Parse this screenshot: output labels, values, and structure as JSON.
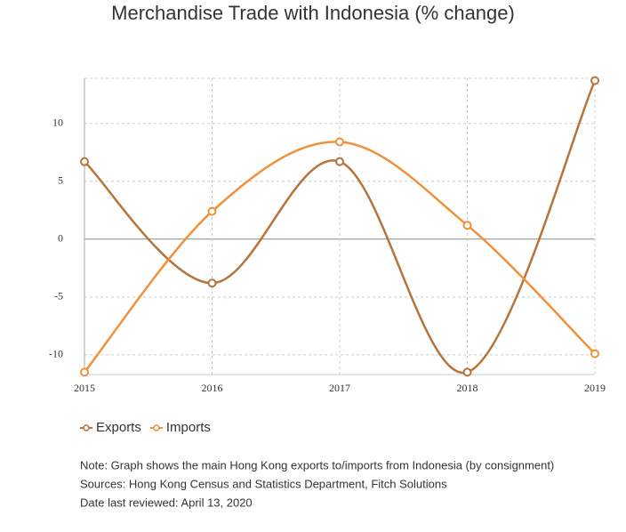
{
  "chart_data": {
    "type": "line",
    "title": "Merchandise Trade with Indonesia (% change)",
    "categories": [
      "2015",
      "2016",
      "2017",
      "2018",
      "2019"
    ],
    "series": [
      {
        "name": "Exports",
        "color": "#b8733a",
        "values": [
          6.7,
          -3.8,
          6.7,
          -11.5,
          13.7
        ]
      },
      {
        "name": "Imports",
        "color": "#f0913a",
        "values": [
          -11.5,
          2.4,
          8.4,
          1.2,
          -9.9
        ]
      }
    ],
    "ylim": [
      -11.7,
      13.9
    ],
    "yticks": [
      -10,
      -5,
      0,
      5,
      10
    ],
    "grid": true,
    "smooth": true,
    "notes": [
      "Note: Graph shows the main Hong Kong exports to/imports from Indonesia (by consignment)",
      "Sources: Hong Kong Census and Statistics Department, Fitch Solutions",
      "Date last reviewed: April 13, 2020"
    ]
  }
}
